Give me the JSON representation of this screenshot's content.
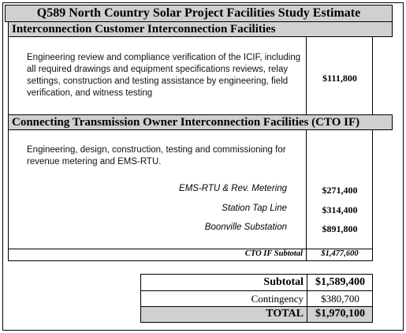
{
  "header": {
    "title": "Q589 North Country Solar Project Facilities Study Estimate"
  },
  "sections": [
    {
      "title": "Interconnection Customer Interconnection Facilities",
      "description": "Engineering review and compliance verification of the ICIF, including all required drawings and equipment specifications reviews, relay settings, construction and testing assistance by engineering, field verification, and witness testing",
      "amount": "$111,800"
    },
    {
      "title": "Connecting Transmission Owner Interconnection Facilities (CTO IF)",
      "description": "Engineering, design, construction, testing and commissioning for revenue metering and EMS-RTU.",
      "items": [
        {
          "label": "EMS-RTU & Rev. Metering",
          "amount": "$271,400"
        },
        {
          "label": "Station Tap Line",
          "amount": "$314,400"
        },
        {
          "label": "Boonville Substation",
          "amount": "$891,800"
        }
      ],
      "subtotal": {
        "label": "CTO IF Subtotal",
        "amount": "$1,477,600"
      }
    }
  ],
  "summary": {
    "rows": [
      {
        "label": "Subtotal",
        "amount": "$1,589,400"
      },
      {
        "label": "Contingency",
        "amount": "$380,700"
      },
      {
        "label": "TOTAL",
        "amount": "$1,970,100"
      }
    ]
  }
}
